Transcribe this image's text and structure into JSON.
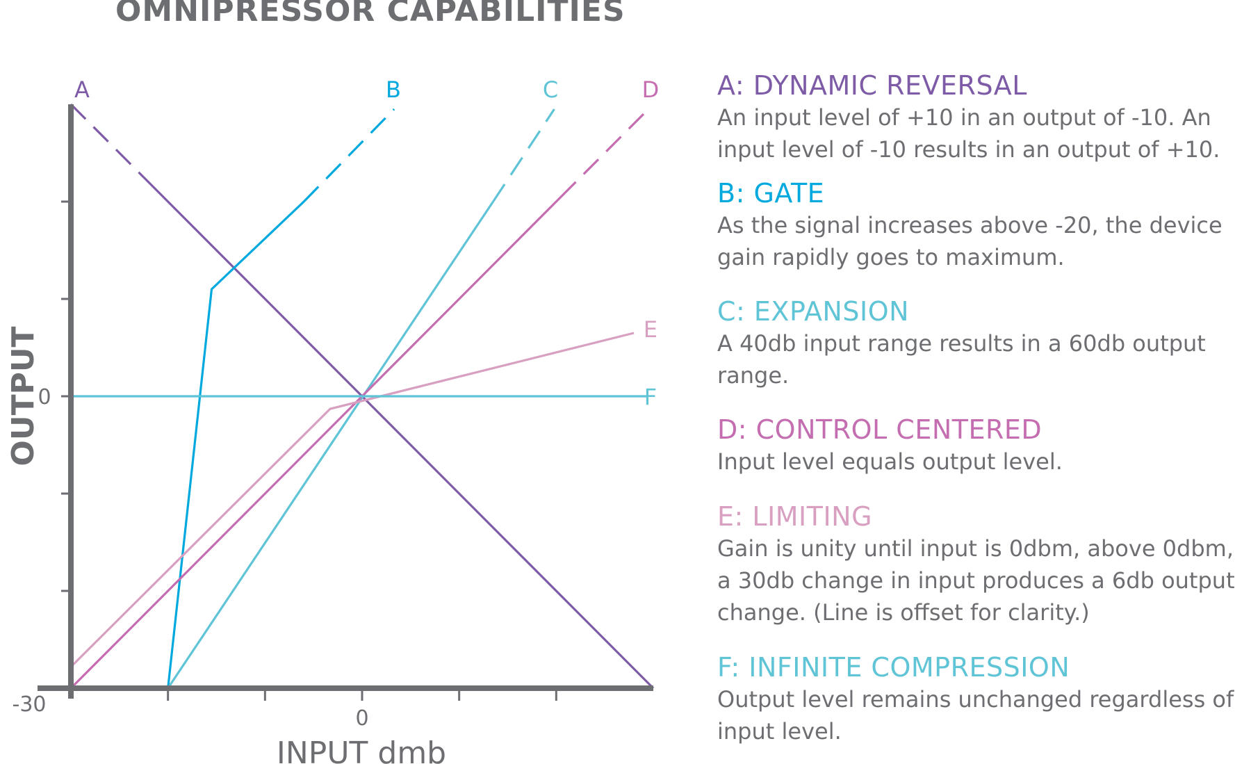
{
  "title": "OMNIPRESSOR CAPABILITIES",
  "colors": {
    "axis": "#6d6e71",
    "A": "#7d5ba6",
    "B": "#00a9dd",
    "C": "#5ec4d6",
    "D": "#c46db0",
    "E": "#d89fc0",
    "F": "#5ec4d6"
  },
  "chart_data": {
    "type": "line",
    "xlabel": "INPUT dmb",
    "ylabel": "OUTPUT",
    "xlim": [
      -30,
      30
    ],
    "ylim": [
      -30,
      30
    ],
    "x_tick_labels": [
      {
        "value": -30,
        "label": "-30"
      },
      {
        "value": 0,
        "label": "0"
      }
    ],
    "y_tick_labels": [
      {
        "value": 0,
        "label": "0"
      }
    ],
    "x_ticks": [
      -30,
      -20,
      -10,
      0,
      10,
      20,
      30
    ],
    "y_ticks": [
      -30,
      -20,
      -10,
      0,
      10,
      20,
      30
    ],
    "series": [
      {
        "name": "A",
        "solid": [
          [
            -22.5,
            22.5
          ],
          [
            30,
            -30
          ]
        ],
        "dashed": [
          [
            -30,
            30
          ],
          [
            -22.5,
            22.5
          ]
        ]
      },
      {
        "name": "B",
        "solid": [
          [
            -20,
            -30
          ],
          [
            -15.5,
            11
          ],
          [
            -6,
            20
          ]
        ],
        "dashed": [
          [
            -6,
            20
          ],
          [
            3.3,
            29.5
          ]
        ]
      },
      {
        "name": "C",
        "solid": [
          [
            -20,
            -30
          ],
          [
            13.5,
            20
          ]
        ],
        "dashed": [
          [
            13.5,
            20
          ],
          [
            19.8,
            29.5
          ]
        ]
      },
      {
        "name": "D",
        "solid": [
          [
            -30,
            -30
          ],
          [
            20.5,
            20.5
          ]
        ],
        "dashed": [
          [
            20.5,
            20.5
          ],
          [
            29.3,
            29.3
          ]
        ]
      },
      {
        "name": "E",
        "solid": [
          [
            -30,
            -27.8
          ],
          [
            -3.3,
            -1.3
          ],
          [
            28,
            6.5
          ]
        ],
        "dashed": []
      },
      {
        "name": "F",
        "solid": [
          [
            -30,
            0
          ],
          [
            29.5,
            0
          ]
        ],
        "dashed": []
      }
    ]
  },
  "legend": [
    {
      "key": "A",
      "heading": "A: DYNAMIC REVERSAL",
      "lines": [
        "An input level of +10 in an output of -10. An",
        "input level of -10 results in an output of +10."
      ]
    },
    {
      "key": "B",
      "heading": "B: GATE",
      "lines": [
        "As the signal increases above -20, the device",
        "gain rapidly goes to maximum."
      ]
    },
    {
      "key": "C",
      "heading": "C: EXPANSION",
      "lines": [
        "A 40db input range results in a 60db output",
        "range."
      ]
    },
    {
      "key": "D",
      "heading": "D: CONTROL CENTERED",
      "lines": [
        "Input level equals output level."
      ]
    },
    {
      "key": "E",
      "heading": "E: LIMITING",
      "lines": [
        "Gain is unity until input is 0dbm, above 0dbm,",
        "a 30db change in input produces a 6db output",
        "change. (Line is offset for clarity.)"
      ]
    },
    {
      "key": "F",
      "heading": "F: INFINITE COMPRESSION",
      "lines": [
        "Output level remains unchanged regardless of",
        "input level."
      ]
    }
  ]
}
